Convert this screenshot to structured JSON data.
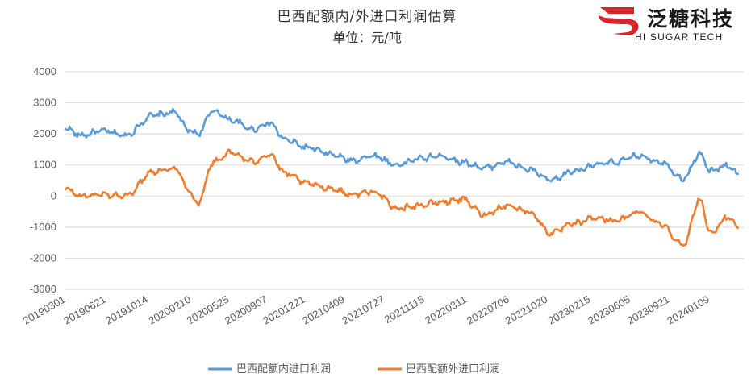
{
  "brand": {
    "name": "泛糖科技",
    "tagline": "HI SUGAR TECH",
    "logo_color": "#d9232d"
  },
  "chart_data": {
    "type": "line",
    "title": "巴西配额内/外进口利润估算",
    "subtitle": "单位：元/吨",
    "ylim": [
      -3000,
      4000
    ],
    "yticks": [
      4000,
      3000,
      2000,
      1000,
      0,
      -1000,
      -2000,
      -3000
    ],
    "xtick_labels": [
      "20190301",
      "20190621",
      "20191014",
      "20200210",
      "20200525",
      "20200907",
      "20201221",
      "20210409",
      "20210727",
      "20211115",
      "20220311",
      "20220706",
      "20221020",
      "20230215",
      "20230605",
      "20230921",
      "20240109"
    ],
    "grid": true,
    "legend_position": "bottom",
    "x_anchors": [
      "20190301",
      "20190415",
      "20190615",
      "20190815",
      "20191101",
      "20200101",
      "20200201",
      "20200301",
      "20200415",
      "20200601",
      "20200801",
      "20200915",
      "20201101",
      "20210101",
      "20210301",
      "20210501",
      "20210701",
      "20210901",
      "20211101",
      "20220101",
      "20220301",
      "20220501",
      "20220701",
      "20220901",
      "20221101",
      "20230101",
      "20230301",
      "20230501",
      "20230701",
      "20230901",
      "20231101",
      "20231215",
      "20240115",
      "20240301",
      "20240401"
    ],
    "series": [
      {
        "name": "巴西配额内进口利润",
        "color": "#5b9bd5",
        "values": [
          2200,
          1950,
          2100,
          1950,
          2600,
          2700,
          2150,
          2000,
          2750,
          2450,
          2150,
          2350,
          1800,
          1550,
          1350,
          1150,
          1300,
          1000,
          1200,
          1300,
          1100,
          900,
          1100,
          850,
          500,
          800,
          1000,
          1100,
          1300,
          1100,
          550,
          1350,
          800,
          1000,
          700
        ]
      },
      {
        "name": "巴西配额外进口利润",
        "color": "#ed7d31",
        "values": [
          250,
          0,
          50,
          0,
          800,
          900,
          300,
          -250,
          1100,
          1400,
          1100,
          1350,
          700,
          400,
          250,
          50,
          150,
          -400,
          -300,
          -200,
          -100,
          -600,
          -300,
          -500,
          -1200,
          -900,
          -700,
          -800,
          -500,
          -900,
          -1600,
          -100,
          -1200,
          -700,
          -1000
        ]
      }
    ]
  }
}
